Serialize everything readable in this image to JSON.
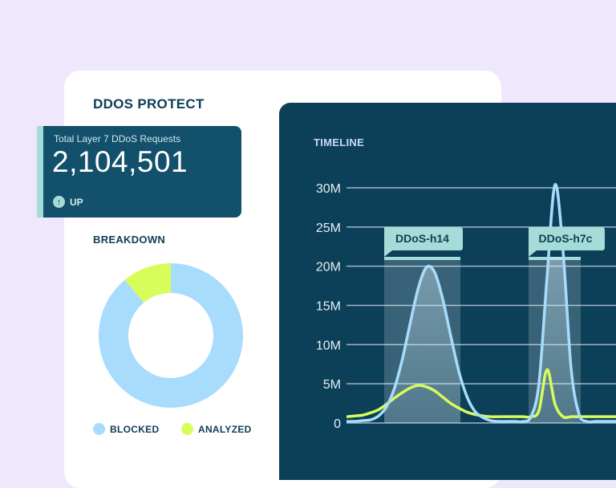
{
  "app": {
    "title": "DDOS PROTECT"
  },
  "stat_card": {
    "label": "Total Layer 7 DDoS Requests",
    "value": "2,104,501",
    "trend": "UP",
    "trend_icon": "arrow-up-circle-icon"
  },
  "breakdown": {
    "title": "BREAKDOWN",
    "segments": [
      {
        "name": "BLOCKED",
        "percent": 89,
        "color": "#a8dcfc"
      },
      {
        "name": "ANALYZED",
        "percent": 11,
        "color": "#d8fc5a"
      }
    ]
  },
  "timeline": {
    "title": "TIMELINE"
  },
  "chart_data": {
    "type": "line",
    "title": "TIMELINE",
    "ylim": [
      0,
      30
    ],
    "y_ticks": [
      "0",
      "5M",
      "10M",
      "15M",
      "20M",
      "25M",
      "30M"
    ],
    "y_tick_values": [
      0,
      5,
      10,
      15,
      20,
      25,
      30
    ],
    "y_unit": "M",
    "grid": true,
    "series": [
      {
        "name": "BLOCKED",
        "color": "#a8dcfc",
        "values": [
          0.2,
          0.2,
          0.3,
          0.4,
          0.9,
          2.1,
          4.5,
          8.3,
          13.0,
          17.4,
          19.9,
          19.2,
          15.8,
          11.1,
          6.6,
          3.4,
          1.5,
          0.7,
          0.3,
          0.2,
          0.2,
          0.2,
          0.2,
          0.8,
          5.1,
          18.6,
          30.4,
          21.9,
          7.0,
          1.1,
          0.2,
          0.2,
          0.2,
          0.2
        ]
      },
      {
        "name": "ANALYZED",
        "color": "#d8fc5a",
        "values": [
          0.8,
          0.9,
          1.0,
          1.3,
          1.7,
          2.4,
          3.2,
          3.9,
          4.5,
          4.8,
          4.6,
          4.1,
          3.3,
          2.5,
          1.9,
          1.4,
          1.1,
          0.9,
          0.8,
          0.8,
          0.8,
          0.8,
          0.8,
          0.8,
          1.6,
          6.8,
          2.4,
          0.8,
          0.8,
          0.8,
          0.8,
          0.8,
          0.8,
          0.8
        ]
      }
    ],
    "annotations": [
      {
        "label": "DDoS-h14",
        "start_index": 5,
        "end_index": 14
      },
      {
        "label": "DDoS-h7c",
        "start_index": 23,
        "end_index": 29
      }
    ]
  }
}
